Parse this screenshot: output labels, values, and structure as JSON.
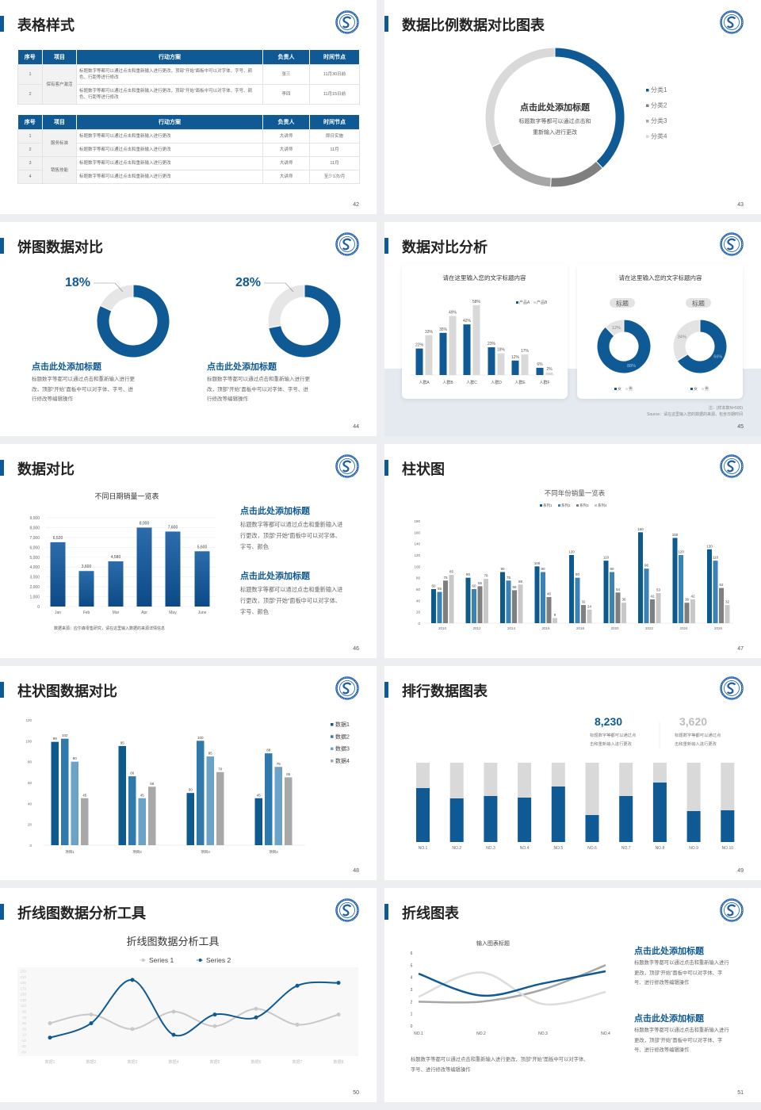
{
  "slides": [
    {
      "title": "表格样式",
      "page": "42",
      "tables": [
        {
          "headers": [
            "序号",
            "项目",
            "行动方案",
            "负责人",
            "时间节点"
          ],
          "groups": [
            {
              "project": "保有客户激活",
              "rows": [
                {
                  "no": "1",
                  "action": "标题数字等都可以通过点击和重新输入进行更改，顶部“开始”面板中可以对字体、字号、颜色、行距等进行修改",
                  "owner": "张三",
                  "time": "11月30日前"
                },
                {
                  "no": "2",
                  "action": "标题数字等都可以通过点击和重新输入进行更改，顶部“开始”面板中可以对字体、字号、颜色、行距等进行修改",
                  "owner": "李四",
                  "time": "11月15日前"
                }
              ]
            }
          ]
        },
        {
          "headers": [
            "序号",
            "项目",
            "行动方案",
            "负责人",
            "时间节点"
          ],
          "groups": [
            {
              "project": "服务标准",
              "rows": [
                {
                  "no": "1",
                  "action": "标题数字等都可以通过点击和重新输入进行更改",
                  "owner": "大讲师",
                  "time": "即日实施"
                },
                {
                  "no": "2",
                  "action": "标题数字等都可以通过点击和重新输入进行更改",
                  "owner": "大讲师",
                  "time": "11月"
                }
              ]
            },
            {
              "project": "销售技能",
              "rows": [
                {
                  "no": "3",
                  "action": "标题数字等都可以通过点击和重新输入进行更改",
                  "owner": "大讲师",
                  "time": "11月"
                },
                {
                  "no": "4",
                  "action": "标题数字等都可以通过点击和重新输入进行更改",
                  "owner": "大讲师",
                  "time": "至少1次/月"
                }
              ]
            }
          ]
        }
      ]
    },
    {
      "title": "数据比例数据对比图表",
      "page": "43",
      "center_title": "点击此处添加标题",
      "center_desc": "标题数字等都可以通过点击和\n重新输入进行更改"
    },
    {
      "title": "饼图数据对比",
      "page": "44",
      "items": [
        {
          "percent": "18%",
          "heading": "点击此处添加标题",
          "desc": "标题数字等都可以通过点击和重新输入进行更\n改，顶部“开始”面板中可以对字体、字号、进\n行修改等编辑操作"
        },
        {
          "percent": "28%",
          "heading": "点击此处添加标题",
          "desc": "标题数字等都可以通过点击和重新输入进行更\n改，顶部“开始”面板中可以对字体、字号、进\n行修改等编辑操作"
        }
      ]
    },
    {
      "title": "数据对比分析",
      "page": "45",
      "card1_title": "请在这里输入您的文字标题内容",
      "card2_title": "请在这里输入您的文字标题内容",
      "pills": [
        "标题",
        "标题"
      ],
      "note": "注：(样本数N=500)",
      "source": "Source：请在这里输入您的数据的来源，包含日期时间"
    },
    {
      "title": "数据对比",
      "page": "46",
      "source": "数据来源：应尔森零售研究，请在这里输入数据的来源详情信息",
      "blocks": [
        {
          "heading": "点击此处添加标题",
          "desc": "标题数字等都可以通过点击和重新输入进\n行更改，顶部“开始”面板中可以对字体、\n字号、颜色"
        },
        {
          "heading": "点击此处添加标题",
          "desc": "标题数字等都可以通过点击和重新输入进\n行更改，顶部“开始”面板中可以对字体、\n字号、颜色"
        }
      ]
    },
    {
      "title": "柱状图",
      "page": "47"
    },
    {
      "title": "柱状图数据对比",
      "page": "48"
    },
    {
      "title": "排行数据图表",
      "page": "49",
      "stats": [
        {
          "value": "8,230",
          "desc": "标题数字等都可以通过点\n击和重新输入进行更改"
        },
        {
          "value": "3,620",
          "desc": "标题数字等都可以通过点\n击和重新输入进行更改"
        }
      ]
    },
    {
      "title": "折线图数据分析工具",
      "page": "50"
    },
    {
      "title": "折线图表",
      "page": "51",
      "note": "标题数字等都可以通过点击和重新输入进行更改，顶部“开始”面板中可以对字体、\n字号、进行修改等编辑操作",
      "blocks": [
        {
          "heading": "点击此处添加标题",
          "desc": "标题数字等都可以通过点击和重新输入进行\n更改，顶部“开始”面板中可以对字体、字\n号、进行修改等编辑操作"
        },
        {
          "heading": "点击此处添加标题",
          "desc": "标题数字等都可以通过点击和重新输入进行\n更改，顶部“开始”面板中可以对字体、字\n号、进行修改等编辑操作"
        }
      ]
    }
  ],
  "colors": {
    "brand": "#0f5a94",
    "gray": "#a6a6a6",
    "light": "#d9d9d9"
  },
  "logo_icon": "university-seal-icon",
  "chart_data": [
    {
      "type": "pie",
      "donut": true,
      "categories": [
        "分类1",
        "分类2",
        "分类3",
        "分类4"
      ],
      "values": [
        38,
        13,
        17,
        32
      ],
      "colors": [
        "#0f5a94",
        "#7f7f7f",
        "#a6a6a6",
        "#d9d9d9"
      ]
    },
    {
      "type": "pie",
      "donut": true,
      "values": [
        82,
        18
      ],
      "colors": [
        "#0f5a94",
        "#e6e6e6"
      ]
    },
    {
      "type": "pie",
      "donut": true,
      "values": [
        72,
        28
      ],
      "colors": [
        "#0f5a94",
        "#e6e6e6"
      ]
    },
    {
      "type": "bar",
      "categories": [
        "人群A",
        "人群B",
        "人群C",
        "人群D",
        "人群E",
        "人群F"
      ],
      "ylim": [
        0,
        60
      ],
      "series": [
        {
          "name": "产品A",
          "values": [
            22,
            35,
            42,
            23,
            12,
            6
          ],
          "labels": [
            "22%",
            "35%",
            "42%",
            "23%",
            "12%",
            "6%"
          ],
          "color": "#0f5a94"
        },
        {
          "name": "产品B",
          "values": [
            33,
            49,
            58,
            18,
            17,
            2
          ],
          "labels": [
            "33%",
            "49%",
            "58%",
            "18%",
            "17%",
            "2%"
          ],
          "color": "#d9d9d9"
        }
      ]
    },
    {
      "type": "pie",
      "donut": true,
      "categories": [
        "女",
        "男"
      ],
      "values": [
        88,
        12
      ],
      "labels": [
        "88%",
        "12%"
      ],
      "colors": [
        "#0f5a94",
        "#e3e3e3"
      ]
    },
    {
      "type": "pie",
      "donut": true,
      "categories": [
        "女",
        "男"
      ],
      "values": [
        66,
        34
      ],
      "labels": [
        "66%",
        "34%"
      ],
      "colors": [
        "#0f5a94",
        "#e3e3e3"
      ]
    },
    {
      "type": "bar",
      "title": "不同日期销量一览表",
      "categories": [
        "Jan",
        "Feb",
        "Mar",
        "Apr",
        "May",
        "June"
      ],
      "values": [
        6520,
        3600,
        4580,
        8000,
        7600,
        5600
      ],
      "labels": [
        "6,520",
        "3,600",
        "4,580",
        "8,000",
        "7,600",
        "5,600"
      ],
      "ylim": [
        0,
        9000
      ],
      "yticks": [
        "0",
        "1,000",
        "2,000",
        "3,000",
        "4,000",
        "5,000",
        "6,000",
        "7,000",
        "8,000",
        "9,000"
      ],
      "grid": true
    },
    {
      "type": "bar",
      "title": "不同年份销量一览表",
      "categories": [
        "2010",
        "2012",
        "2014",
        "2016",
        "2018",
        "2020",
        "2022",
        "2024",
        "2026"
      ],
      "ylim": [
        0,
        180
      ],
      "yticks": [
        0,
        20,
        40,
        60,
        80,
        100,
        120,
        140,
        160,
        180
      ],
      "legend": "top",
      "series": [
        {
          "name": "系列1",
          "values": [
            60,
            80,
            90,
            100,
            120,
            110,
            160,
            150,
            130
          ],
          "color": "#0d5a8f"
        },
        {
          "name": "系列2",
          "values": [
            55,
            60,
            75,
            90,
            80,
            90,
            96,
            120,
            110
          ],
          "color": "#3b82b6"
        },
        {
          "name": "系列3",
          "values": [
            75,
            65,
            58,
            46,
            32,
            54,
            42,
            36,
            62
          ],
          "color": "#7f7f7f"
        },
        {
          "name": "系列4",
          "values": [
            85,
            78,
            68,
            9,
            24,
            36,
            53,
            42,
            32
          ],
          "color": "#c8c8c8"
        }
      ]
    },
    {
      "type": "bar",
      "categories": [
        "项目1",
        "项目2",
        "项目3",
        "项目4"
      ],
      "ylim": [
        0,
        120
      ],
      "yticks": [
        0,
        20,
        40,
        60,
        80,
        100,
        120
      ],
      "legend": "right",
      "series": [
        {
          "name": "数据1",
          "values": [
            99,
            95,
            50,
            45
          ],
          "color": "#0d5a8f"
        },
        {
          "name": "数据2",
          "values": [
            102,
            66,
            100,
            88
          ],
          "color": "#2f79ad"
        },
        {
          "name": "数据3",
          "values": [
            80,
            45,
            85,
            75
          ],
          "color": "#6aa2c8"
        },
        {
          "name": "数据4",
          "values": [
            45,
            56,
            70,
            65
          ],
          "color": "#a8a8a8"
        }
      ]
    },
    {
      "type": "bar",
      "stacked": true,
      "categories": [
        "NO.1",
        "NO.2",
        "NO.3",
        "NO.4",
        "NO.5",
        "NO.6",
        "NO.7",
        "NO.8",
        "NO.9",
        "NO.10"
      ],
      "values_percent": [
        68,
        55,
        58,
        56,
        70,
        34,
        58,
        75,
        39,
        40
      ],
      "colors": [
        "#0f5a94",
        "#d9d9d9"
      ]
    },
    {
      "type": "line",
      "title": "折线图数据分析工具",
      "categories": [
        "数据1",
        "数据2",
        "数据3",
        "数据4",
        "数据5",
        "数据6",
        "数据7",
        "数据8"
      ],
      "ylim": [
        -50,
        230
      ],
      "yticks": [
        230,
        210,
        190,
        170,
        150,
        130,
        110,
        90,
        70,
        50,
        30,
        10,
        -10,
        -30,
        -50
      ],
      "legend": "top",
      "series": [
        {
          "name": "Series 1",
          "values": [
            50,
            80,
            30,
            90,
            40,
            100,
            45,
            80
          ],
          "color": "#c8c8c8"
        },
        {
          "name": "Series 2",
          "values": [
            0,
            50,
            200,
            10,
            80,
            70,
            180,
            190
          ],
          "color": "#0f5a94"
        }
      ]
    },
    {
      "type": "line",
      "title": "输入图表标题",
      "categories": [
        "NO.1",
        "NO.2",
        "NO.3",
        "NO.4"
      ],
      "ylim": [
        0,
        6
      ],
      "yticks": [
        0,
        1,
        2,
        3,
        4,
        5,
        6
      ],
      "series": [
        {
          "values": [
            4.3,
            2.5,
            3.5,
            4.5
          ],
          "color": "#0f5a94"
        },
        {
          "values": [
            2.4,
            4.4,
            1.8,
            2.8
          ],
          "color": "#dcdcdc"
        },
        {
          "values": [
            2,
            2,
            3,
            5
          ],
          "color": "#a6a6a6"
        }
      ]
    }
  ]
}
